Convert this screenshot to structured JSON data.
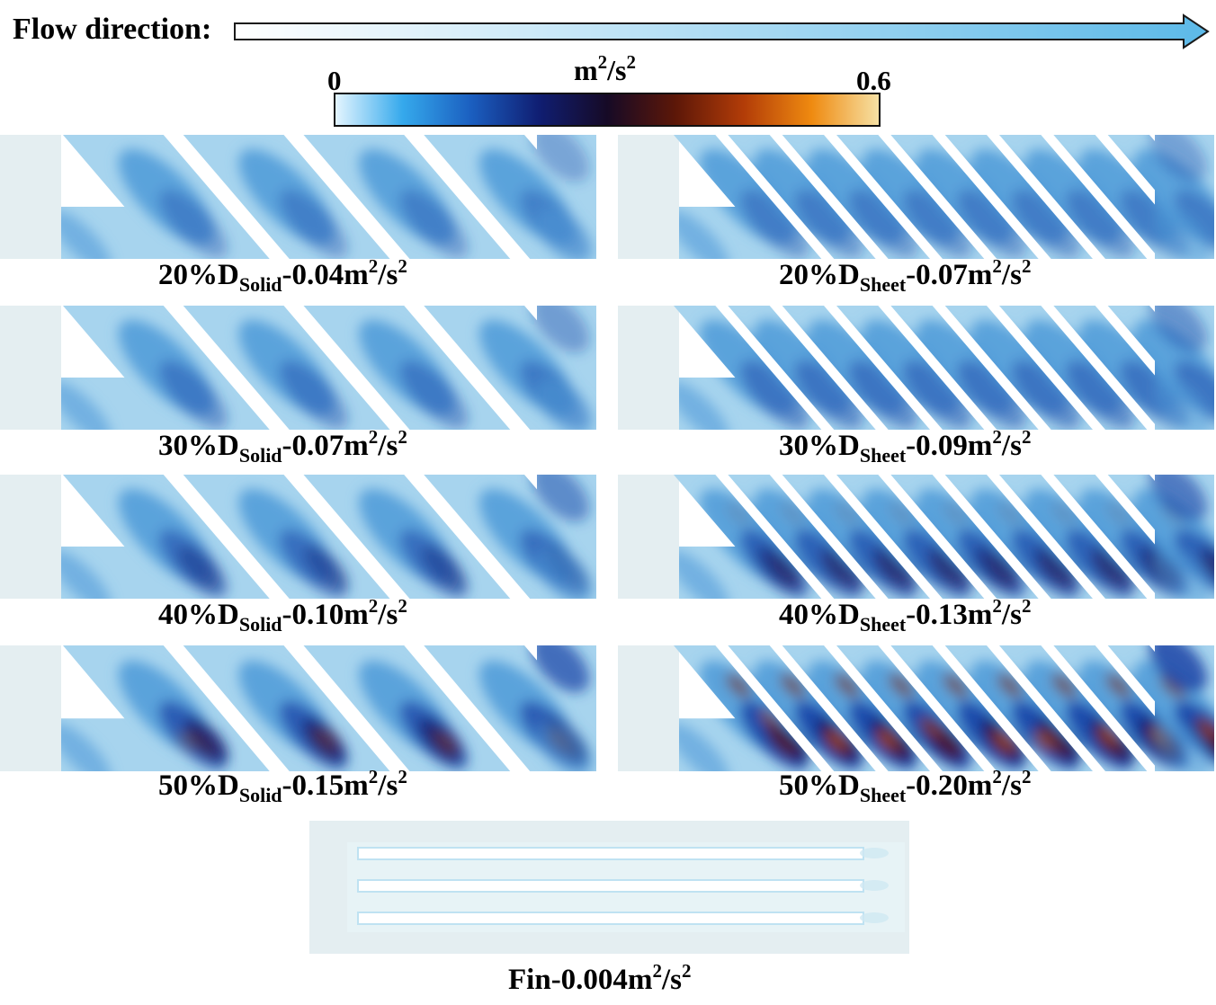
{
  "flow": {
    "label": "Flow direction",
    "sep": ":"
  },
  "colorbar": {
    "unit_base": "m",
    "unit_exp": "2",
    "unit_mid": "/s",
    "unit_exp2": "2",
    "min": "0",
    "max": "0.6",
    "stops": [
      "#e6f6ff",
      "#35a9ec",
      "#1b5fc0",
      "#101e72",
      "#160a26",
      "#5c1708",
      "#b23c08",
      "#ef8a10",
      "#f6e2a6"
    ]
  },
  "colors": {
    "light": "#a7d4ee",
    "mid": "#4e9ad8",
    "dark": "#1b47a8",
    "deep": "#101a6e",
    "hot": "#7a1f0a",
    "orange": "#d8620f",
    "wall": "#e4eef1",
    "fin_fluid": "#e7f3f6",
    "arrow": "#5cb9e8"
  },
  "panels": [
    {
      "pct": "20%",
      "type": "Solid",
      "value": "-0.04",
      "intensity": 0.05
    },
    {
      "pct": "20%",
      "type": "Sheet",
      "value": "-0.07",
      "intensity": 0.1
    },
    {
      "pct": "30%",
      "type": "Solid",
      "value": "-0.07",
      "intensity": 0.15
    },
    {
      "pct": "30%",
      "type": "Sheet",
      "value": "-0.09",
      "intensity": 0.25
    },
    {
      "pct": "40%",
      "type": "Solid",
      "value": "-0.10",
      "intensity": 0.35
    },
    {
      "pct": "40%",
      "type": "Sheet",
      "value": "-0.13",
      "intensity": 0.55
    },
    {
      "pct": "50%",
      "type": "Solid",
      "value": "-0.15",
      "intensity": 0.7
    },
    {
      "pct": "50%",
      "type": "Sheet",
      "value": "-0.20",
      "intensity": 0.95
    }
  ],
  "label_parts": {
    "prefix": "D",
    "unit_base": "m",
    "exp": "2",
    "mid": "/s",
    "exp2": "2"
  },
  "fin": {
    "name": "Fin",
    "value": "-0.004",
    "unit_base": "m",
    "exp": "2",
    "mid": "/s",
    "exp2": "2"
  }
}
